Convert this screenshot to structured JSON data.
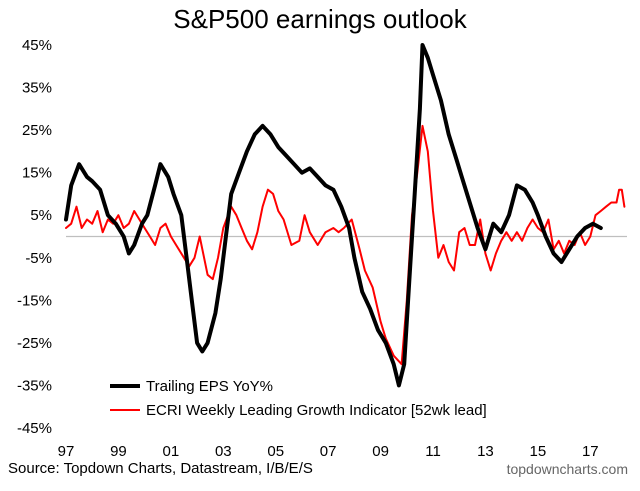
{
  "chart_data": {
    "type": "line",
    "title": "S&P500 earnings outlook",
    "y_ticks": [
      "45%",
      "35%",
      "25%",
      "15%",
      "5%",
      "-5%",
      "-15%",
      "-25%",
      "-35%",
      "-45%"
    ],
    "ylim": [
      -45,
      45
    ],
    "x_ticks": [
      "97",
      "99",
      "01",
      "03",
      "05",
      "07",
      "09",
      "11",
      "13",
      "15",
      "17"
    ],
    "xlim": [
      1997.0,
      2018.4
    ],
    "zero_line": true,
    "grid": false,
    "legend_position": "bottom-left",
    "series": [
      {
        "name": "Trailing EPS YoY%",
        "color": "#000000",
        "points": [
          [
            1997.0,
            4
          ],
          [
            1997.2,
            12
          ],
          [
            1997.5,
            17
          ],
          [
            1997.8,
            14
          ],
          [
            1998.0,
            13
          ],
          [
            1998.3,
            11
          ],
          [
            1998.6,
            5
          ],
          [
            1998.9,
            3
          ],
          [
            1999.2,
            0
          ],
          [
            1999.4,
            -4
          ],
          [
            1999.6,
            -2
          ],
          [
            1999.9,
            3
          ],
          [
            2000.1,
            5
          ],
          [
            2000.4,
            12
          ],
          [
            2000.6,
            17
          ],
          [
            2000.9,
            14
          ],
          [
            2001.1,
            10
          ],
          [
            2001.4,
            5
          ],
          [
            2001.6,
            -5
          ],
          [
            2001.8,
            -15
          ],
          [
            2002.0,
            -25
          ],
          [
            2002.2,
            -27
          ],
          [
            2002.4,
            -25
          ],
          [
            2002.7,
            -18
          ],
          [
            2002.9,
            -10
          ],
          [
            2003.1,
            0
          ],
          [
            2003.3,
            10
          ],
          [
            2003.6,
            15
          ],
          [
            2003.9,
            20
          ],
          [
            2004.2,
            24
          ],
          [
            2004.5,
            26
          ],
          [
            2004.8,
            24
          ],
          [
            2005.1,
            21
          ],
          [
            2005.4,
            19
          ],
          [
            2005.7,
            17
          ],
          [
            2006.0,
            15
          ],
          [
            2006.3,
            16
          ],
          [
            2006.6,
            14
          ],
          [
            2006.9,
            12
          ],
          [
            2007.2,
            11
          ],
          [
            2007.5,
            7
          ],
          [
            2007.8,
            2
          ],
          [
            2008.0,
            -5
          ],
          [
            2008.3,
            -13
          ],
          [
            2008.6,
            -17
          ],
          [
            2008.9,
            -22
          ],
          [
            2009.2,
            -25
          ],
          [
            2009.5,
            -30
          ],
          [
            2009.7,
            -35
          ],
          [
            2009.9,
            -30
          ],
          [
            2010.1,
            -10
          ],
          [
            2010.3,
            10
          ],
          [
            2010.5,
            30
          ],
          [
            2010.6,
            45
          ],
          [
            2010.8,
            42
          ],
          [
            2011.0,
            38
          ],
          [
            2011.3,
            32
          ],
          [
            2011.6,
            24
          ],
          [
            2011.9,
            18
          ],
          [
            2012.1,
            14
          ],
          [
            2012.4,
            8
          ],
          [
            2012.7,
            2
          ],
          [
            2013.0,
            -3
          ],
          [
            2013.3,
            3
          ],
          [
            2013.6,
            1
          ],
          [
            2013.9,
            5
          ],
          [
            2014.2,
            12
          ],
          [
            2014.5,
            11
          ],
          [
            2014.8,
            8
          ],
          [
            2015.0,
            5
          ],
          [
            2015.3,
            0
          ],
          [
            2015.6,
            -4
          ],
          [
            2015.9,
            -6
          ],
          [
            2016.2,
            -3
          ],
          [
            2016.5,
            0
          ],
          [
            2016.8,
            2
          ],
          [
            2017.1,
            3
          ],
          [
            2017.4,
            2
          ]
        ]
      },
      {
        "name": "ECRI Weekly Leading Growth Indicator [52wk lead]",
        "color": "#ff0000",
        "points": [
          [
            1997.0,
            2
          ],
          [
            1997.2,
            3
          ],
          [
            1997.4,
            7
          ],
          [
            1997.6,
            2
          ],
          [
            1997.8,
            4
          ],
          [
            1998.0,
            3
          ],
          [
            1998.2,
            6
          ],
          [
            1998.4,
            1
          ],
          [
            1998.6,
            4
          ],
          [
            1998.8,
            3
          ],
          [
            1999.0,
            5
          ],
          [
            1999.2,
            2
          ],
          [
            1999.4,
            3
          ],
          [
            1999.6,
            6
          ],
          [
            1999.8,
            4
          ],
          [
            2000.0,
            2
          ],
          [
            2000.2,
            0
          ],
          [
            2000.4,
            -2
          ],
          [
            2000.6,
            2
          ],
          [
            2000.8,
            3
          ],
          [
            2001.0,
            0
          ],
          [
            2001.2,
            -2
          ],
          [
            2001.5,
            -5
          ],
          [
            2001.7,
            -7
          ],
          [
            2001.9,
            -5
          ],
          [
            2002.1,
            0
          ],
          [
            2002.4,
            -9
          ],
          [
            2002.6,
            -10
          ],
          [
            2002.8,
            -5
          ],
          [
            2003.0,
            2
          ],
          [
            2003.3,
            7
          ],
          [
            2003.5,
            5
          ],
          [
            2003.7,
            2
          ],
          [
            2003.9,
            -1
          ],
          [
            2004.1,
            -3
          ],
          [
            2004.3,
            1
          ],
          [
            2004.5,
            7
          ],
          [
            2004.7,
            11
          ],
          [
            2004.9,
            10
          ],
          [
            2005.1,
            6
          ],
          [
            2005.3,
            4
          ],
          [
            2005.6,
            -2
          ],
          [
            2005.9,
            -1
          ],
          [
            2006.1,
            5
          ],
          [
            2006.3,
            1
          ],
          [
            2006.6,
            -2
          ],
          [
            2006.9,
            1
          ],
          [
            2007.2,
            2
          ],
          [
            2007.4,
            1
          ],
          [
            2007.6,
            2
          ],
          [
            2007.9,
            4
          ],
          [
            2008.2,
            -3
          ],
          [
            2008.4,
            -8
          ],
          [
            2008.7,
            -12
          ],
          [
            2009.0,
            -20
          ],
          [
            2009.2,
            -24
          ],
          [
            2009.5,
            -28
          ],
          [
            2009.8,
            -30
          ],
          [
            2010.0,
            -15
          ],
          [
            2010.2,
            5
          ],
          [
            2010.4,
            15
          ],
          [
            2010.6,
            26
          ],
          [
            2010.8,
            20
          ],
          [
            2011.0,
            6
          ],
          [
            2011.2,
            -5
          ],
          [
            2011.4,
            -2
          ],
          [
            2011.6,
            -6
          ],
          [
            2011.8,
            -8
          ],
          [
            2012.0,
            1
          ],
          [
            2012.2,
            2
          ],
          [
            2012.4,
            -2
          ],
          [
            2012.6,
            -2
          ],
          [
            2012.8,
            4
          ],
          [
            2013.0,
            -4
          ],
          [
            2013.2,
            -8
          ],
          [
            2013.4,
            -4
          ],
          [
            2013.6,
            -1
          ],
          [
            2013.8,
            1
          ],
          [
            2014.0,
            -1
          ],
          [
            2014.2,
            1
          ],
          [
            2014.4,
            -1
          ],
          [
            2014.6,
            2
          ],
          [
            2014.8,
            4
          ],
          [
            2015.0,
            2
          ],
          [
            2015.2,
            1
          ],
          [
            2015.4,
            4
          ],
          [
            2015.6,
            -3
          ],
          [
            2015.8,
            -1
          ],
          [
            2016.0,
            -4
          ],
          [
            2016.2,
            -1
          ],
          [
            2016.4,
            -2
          ],
          [
            2016.6,
            1
          ],
          [
            2016.8,
            -2
          ],
          [
            2017.0,
            0
          ],
          [
            2017.2,
            5
          ],
          [
            2017.4,
            6
          ],
          [
            2017.6,
            7
          ],
          [
            2017.8,
            8
          ],
          [
            2018.0,
            8
          ],
          [
            2018.1,
            11
          ],
          [
            2018.2,
            11
          ],
          [
            2018.3,
            7
          ]
        ]
      }
    ]
  },
  "footer": {
    "source": "Source: Topdown Charts, Datastream, I/B/E/S",
    "brand": "topdowncharts.com"
  }
}
